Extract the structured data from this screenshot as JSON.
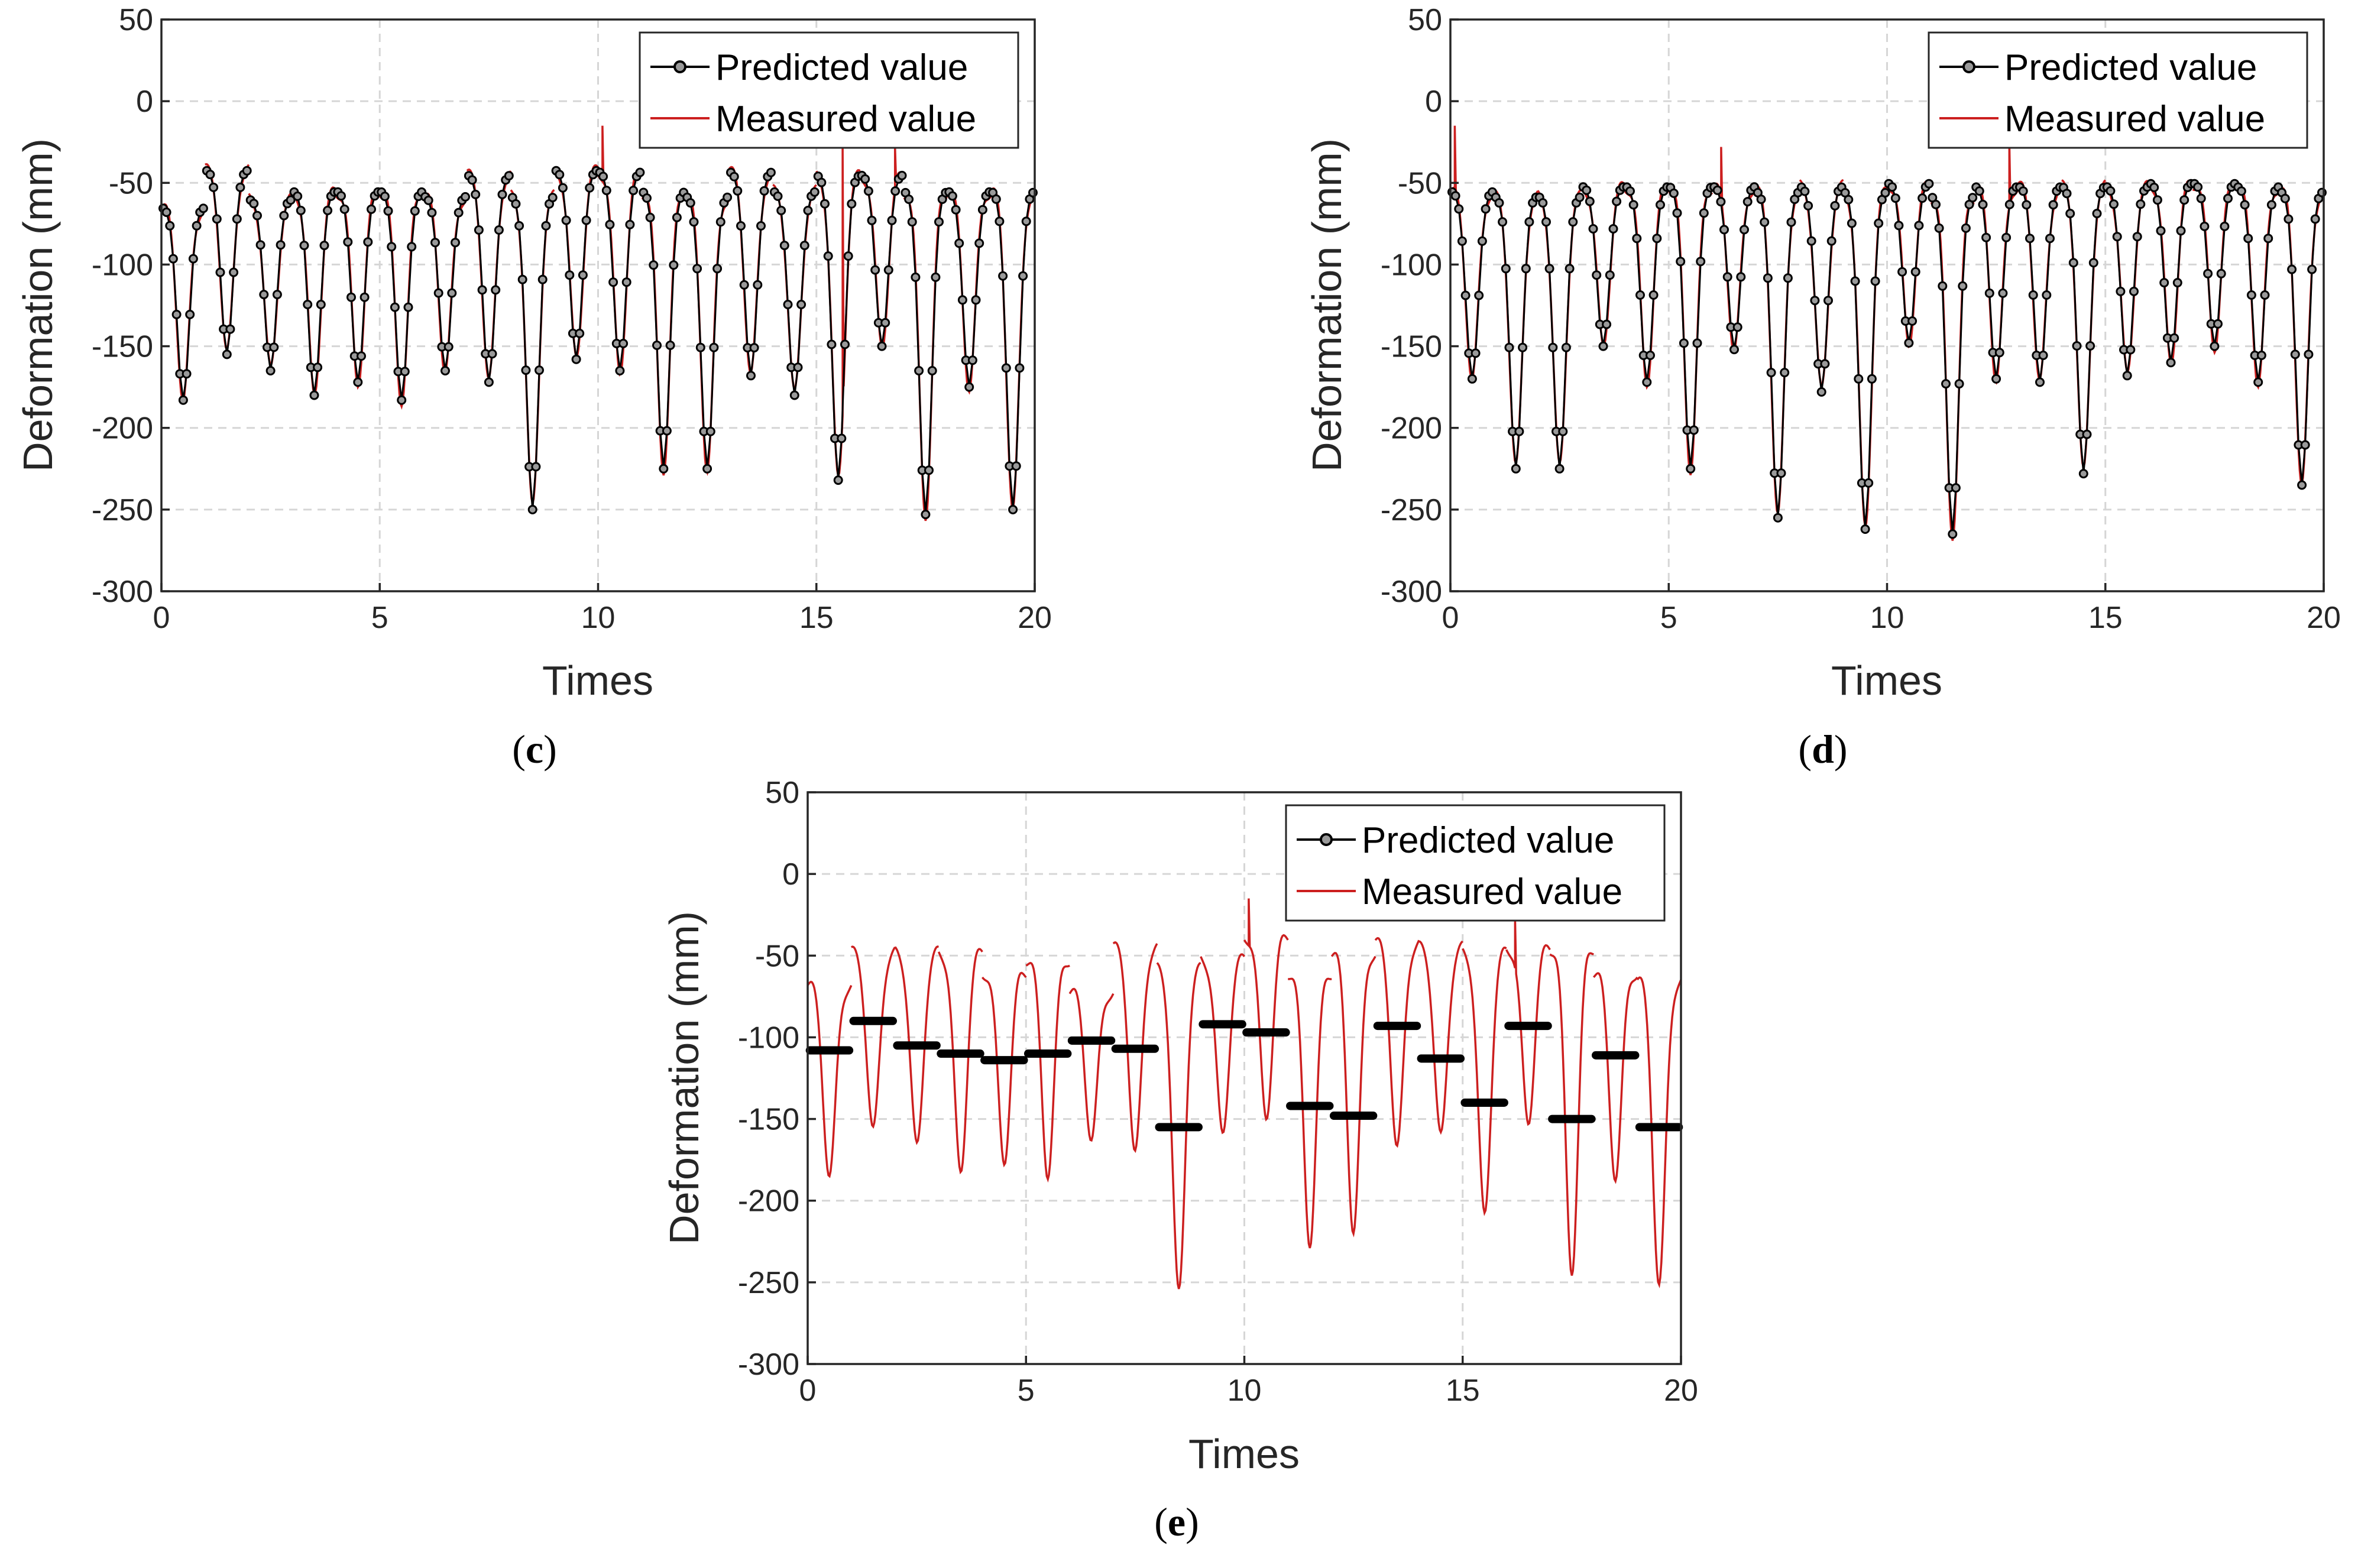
{
  "colors": {
    "predicted": "#000000",
    "measured": "#cc1f1f",
    "grid": "#d6d6d6",
    "axis": "#262626"
  },
  "chart_data": [
    {
      "id": "c",
      "panel_label": "c",
      "type": "line",
      "xlabel": "Times",
      "ylabel": "Deformation (mm)",
      "xlim": [
        0,
        20
      ],
      "ylim": [
        -300,
        50
      ],
      "xticks": [
        0,
        5,
        10,
        15,
        20
      ],
      "yticks": [
        50,
        0,
        -50,
        -100,
        -150,
        -200,
        -250,
        -300
      ],
      "grid": true,
      "legend": {
        "position": "top-right",
        "entries": [
          "Predicted value",
          "Measured value"
        ]
      },
      "predicted_style": "line-markers",
      "cycles": [
        {
          "t": 0.5,
          "min": -183,
          "peak": -65
        },
        {
          "t": 1.5,
          "min": -155,
          "peak": -42
        },
        {
          "t": 2.5,
          "min": -165,
          "peak": -60
        },
        {
          "t": 3.5,
          "min": -180,
          "peak": -55
        },
        {
          "t": 4.5,
          "min": -172,
          "peak": -55
        },
        {
          "t": 5.5,
          "min": -183,
          "peak": -55
        },
        {
          "t": 6.5,
          "min": -165,
          "peak": -58
        },
        {
          "t": 7.5,
          "min": -172,
          "peak": -45
        },
        {
          "t": 8.5,
          "min": -250,
          "peak": -58
        },
        {
          "t": 9.5,
          "min": -158,
          "peak": -42
        },
        {
          "t": 10.5,
          "min": -165,
          "peak": -43
        },
        {
          "t": 11.5,
          "min": -225,
          "peak": -55
        },
        {
          "t": 12.5,
          "min": -225,
          "peak": -58
        },
        {
          "t": 13.5,
          "min": -168,
          "peak": -43
        },
        {
          "t": 14.5,
          "min": -180,
          "peak": -55
        },
        {
          "t": 15.5,
          "min": -232,
          "peak": -45
        },
        {
          "t": 16.5,
          "min": -150,
          "peak": -45
        },
        {
          "t": 17.5,
          "min": -253,
          "peak": -55
        },
        {
          "t": 18.5,
          "min": -175,
          "peak": -55
        },
        {
          "t": 19.5,
          "min": -250,
          "peak": -55
        }
      ],
      "measured_spikes": [
        {
          "t": 10.1,
          "value": -15
        },
        {
          "t": 15.6,
          "value": -28
        },
        {
          "t": 16.8,
          "value": -28
        }
      ]
    },
    {
      "id": "d",
      "panel_label": "d",
      "type": "line",
      "xlabel": "Times",
      "ylabel": "Deformation (mm)",
      "xlim": [
        0,
        20
      ],
      "ylim": [
        -300,
        50
      ],
      "xticks": [
        0,
        5,
        10,
        15,
        20
      ],
      "yticks": [
        50,
        0,
        -50,
        -100,
        -150,
        -200,
        -250,
        -300
      ],
      "grid": true,
      "legend": {
        "position": "top-right",
        "entries": [
          "Predicted value",
          "Measured value"
        ]
      },
      "predicted_style": "line-markers",
      "cycles": [
        {
          "t": 0.5,
          "min": -170,
          "peak": -55
        },
        {
          "t": 1.5,
          "min": -225,
          "peak": -58
        },
        {
          "t": 2.5,
          "min": -225,
          "peak": -58
        },
        {
          "t": 3.5,
          "min": -150,
          "peak": -52
        },
        {
          "t": 4.5,
          "min": -172,
          "peak": -52
        },
        {
          "t": 5.5,
          "min": -225,
          "peak": -52
        },
        {
          "t": 6.5,
          "min": -152,
          "peak": -52
        },
        {
          "t": 7.5,
          "min": -255,
          "peak": -55
        },
        {
          "t": 8.5,
          "min": -178,
          "peak": -52
        },
        {
          "t": 9.5,
          "min": -262,
          "peak": -55
        },
        {
          "t": 10.5,
          "min": -148,
          "peak": -50
        },
        {
          "t": 11.5,
          "min": -265,
          "peak": -58
        },
        {
          "t": 12.5,
          "min": -170,
          "peak": -52
        },
        {
          "t": 13.5,
          "min": -172,
          "peak": -52
        },
        {
          "t": 14.5,
          "min": -228,
          "peak": -52
        },
        {
          "t": 15.5,
          "min": -168,
          "peak": -52
        },
        {
          "t": 16.5,
          "min": -160,
          "peak": -50
        },
        {
          "t": 17.5,
          "min": -150,
          "peak": -50
        },
        {
          "t": 18.5,
          "min": -172,
          "peak": -52
        },
        {
          "t": 19.5,
          "min": -235,
          "peak": -55
        }
      ],
      "measured_spikes": [
        {
          "t": 0.1,
          "value": -15
        },
        {
          "t": 6.2,
          "value": -28
        },
        {
          "t": 12.8,
          "value": -25
        }
      ]
    },
    {
      "id": "e",
      "panel_label": "e",
      "type": "line",
      "xlabel": "Times",
      "ylabel": "Deformation (mm)",
      "xlim": [
        0,
        20
      ],
      "ylim": [
        -300,
        50
      ],
      "xticks": [
        0,
        5,
        10,
        15,
        20
      ],
      "yticks": [
        50,
        0,
        -50,
        -100,
        -150,
        -200,
        -250,
        -300
      ],
      "grid": true,
      "legend": {
        "position": "top-right",
        "entries": [
          "Predicted value",
          "Measured value"
        ]
      },
      "predicted_style": "flat-segments",
      "predicted_levels": [
        -108,
        -90,
        -105,
        -110,
        -114,
        -110,
        -102,
        -107,
        -155,
        -92,
        -97,
        -142,
        -148,
        -93,
        -113,
        -140,
        -93,
        -150,
        -111,
        -155
      ],
      "cycles": [
        {
          "t": 0.5,
          "min": -185,
          "peak": -68
        },
        {
          "t": 1.5,
          "min": -158,
          "peak": -48
        },
        {
          "t": 2.5,
          "min": -168,
          "peak": -48
        },
        {
          "t": 3.5,
          "min": -183,
          "peak": -48
        },
        {
          "t": 4.5,
          "min": -175,
          "peak": -60
        },
        {
          "t": 5.5,
          "min": -183,
          "peak": -52
        },
        {
          "t": 6.5,
          "min": -162,
          "peak": -72
        },
        {
          "t": 7.5,
          "min": -172,
          "peak": -45
        },
        {
          "t": 8.5,
          "min": -258,
          "peak": -58
        },
        {
          "t": 9.5,
          "min": -160,
          "peak": -52
        },
        {
          "t": 10.5,
          "min": -148,
          "peak": -38
        },
        {
          "t": 11.5,
          "min": -225,
          "peak": -60
        },
        {
          "t": 12.5,
          "min": -218,
          "peak": -48
        },
        {
          "t": 13.5,
          "min": -168,
          "peak": -42
        },
        {
          "t": 14.5,
          "min": -162,
          "peak": -45
        },
        {
          "t": 15.5,
          "min": -210,
          "peak": -48
        },
        {
          "t": 16.5,
          "min": -152,
          "peak": -45
        },
        {
          "t": 17.5,
          "min": -242,
          "peak": -45
        },
        {
          "t": 18.5,
          "min": -185,
          "peak": -60
        },
        {
          "t": 19.5,
          "min": -252,
          "peak": -65
        }
      ],
      "measured_spikes": [
        {
          "t": 10.1,
          "value": -15
        },
        {
          "t": 16.2,
          "value": -28
        }
      ]
    }
  ]
}
